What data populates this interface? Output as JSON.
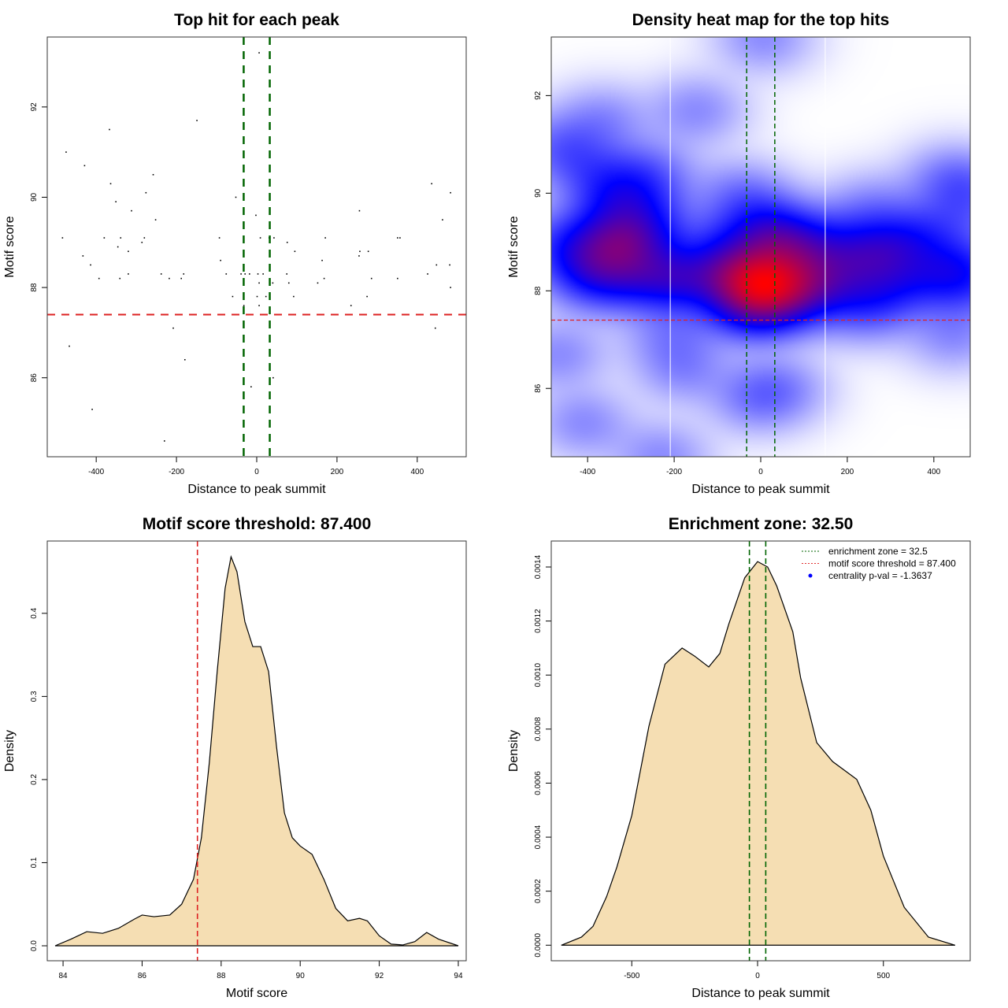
{
  "chart_data": [
    {
      "type": "scatter",
      "title": "Top hit for each peak",
      "xlabel": "Distance to peak summit",
      "ylabel": "Motif score",
      "xlim": [
        -522,
        522
      ],
      "ylim": [
        84.25,
        93.55
      ],
      "xticks": [
        -400,
        -200,
        0,
        200,
        400
      ],
      "yticks": [
        86,
        88,
        90,
        92
      ],
      "vlines": [
        -32.5,
        32.5
      ],
      "hline": 87.4,
      "points": [
        [
          6,
          93.2
        ],
        [
          -149,
          91.7
        ],
        [
          -367,
          91.5
        ],
        [
          -475,
          91.0
        ],
        [
          -429,
          90.7
        ],
        [
          -258,
          90.5
        ],
        [
          -364,
          90.3
        ],
        [
          436,
          90.3
        ],
        [
          -276,
          90.1
        ],
        [
          483,
          90.1
        ],
        [
          -52,
          90.0
        ],
        [
          -351,
          89.9
        ],
        [
          -2,
          89.6
        ],
        [
          -312,
          89.7
        ],
        [
          256,
          89.7
        ],
        [
          -252,
          89.5
        ],
        [
          463,
          89.5
        ],
        [
          -484,
          89.1
        ],
        [
          -380,
          89.1
        ],
        [
          -339,
          89.1
        ],
        [
          -280,
          89.1
        ],
        [
          -93,
          89.1
        ],
        [
          9,
          89.1
        ],
        [
          31,
          89.1
        ],
        [
          43,
          89.1
        ],
        [
          171,
          89.1
        ],
        [
          351,
          89.1
        ],
        [
          357,
          89.1
        ],
        [
          -286,
          89.0
        ],
        [
          76,
          89.0
        ],
        [
          -346,
          88.9
        ],
        [
          -320,
          88.8
        ],
        [
          95,
          88.8
        ],
        [
          257,
          88.8
        ],
        [
          278,
          88.8
        ],
        [
          -433,
          88.7
        ],
        [
          255,
          88.7
        ],
        [
          -90,
          88.6
        ],
        [
          163,
          88.6
        ],
        [
          -414,
          88.5
        ],
        [
          448,
          88.5
        ],
        [
          481,
          88.5
        ],
        [
          -320,
          88.3
        ],
        [
          -238,
          88.3
        ],
        [
          -182,
          88.3
        ],
        [
          -76,
          88.3
        ],
        [
          -39,
          88.3
        ],
        [
          -29,
          88.3
        ],
        [
          -18,
          88.3
        ],
        [
          3,
          88.3
        ],
        [
          16,
          88.3
        ],
        [
          75,
          88.3
        ],
        [
          426,
          88.3
        ],
        [
          -393,
          88.2
        ],
        [
          -341,
          88.2
        ],
        [
          -218,
          88.2
        ],
        [
          -188,
          88.2
        ],
        [
          168,
          88.2
        ],
        [
          286,
          88.2
        ],
        [
          351,
          88.2
        ],
        [
          6,
          88.1
        ],
        [
          40,
          88.1
        ],
        [
          80,
          88.1
        ],
        [
          152,
          88.1
        ],
        [
          483,
          88.0
        ],
        [
          -60,
          87.8
        ],
        [
          1,
          87.8
        ],
        [
          23,
          87.8
        ],
        [
          92,
          87.8
        ],
        [
          275,
          87.8
        ],
        [
          -32,
          87.6
        ],
        [
          6,
          87.6
        ],
        [
          235,
          87.6
        ],
        [
          -208,
          87.1
        ],
        [
          445,
          87.1
        ],
        [
          -467,
          86.7
        ],
        [
          -179,
          86.4
        ],
        [
          -14,
          85.8
        ],
        [
          41,
          86.0
        ],
        [
          -410,
          85.3
        ],
        [
          -230,
          84.6
        ]
      ]
    },
    {
      "type": "heatmap",
      "title": "Density heat map for the top hits",
      "xlabel": "Distance to peak summit",
      "ylabel": "Motif score",
      "xlim": [
        -484,
        484
      ],
      "ylim": [
        84.6,
        93.2
      ],
      "xticks": [
        -400,
        -200,
        0,
        200,
        400
      ],
      "yticks": [
        86,
        88,
        90,
        92
      ],
      "vlines": [
        -32.5,
        32.5
      ],
      "hline": 87.4,
      "white_lines": [
        -209,
        149
      ],
      "source": "points of panel 1"
    },
    {
      "type": "area",
      "title": "Motif score threshold: 87.400",
      "xlabel": "Motif score",
      "ylabel": "Density",
      "xlim": [
        83.6,
        94.2
      ],
      "ylim": [
        -0.018,
        0.487
      ],
      "xticks": [
        84,
        86,
        88,
        90,
        92,
        94
      ],
      "yticks": [
        0.0,
        0.1,
        0.2,
        0.3,
        0.4
      ],
      "ytick_labels": [
        "0.0",
        "0.1",
        "0.2",
        "0.3",
        "0.4"
      ],
      "vlines": [
        87.4
      ],
      "x": [
        83.8,
        84.2,
        84.6,
        85.0,
        85.4,
        85.8,
        86.0,
        86.3,
        86.7,
        87.0,
        87.3,
        87.5,
        87.7,
        87.9,
        88.1,
        88.25,
        88.4,
        88.6,
        88.8,
        89.0,
        89.2,
        89.4,
        89.6,
        89.8,
        90.0,
        90.3,
        90.6,
        90.9,
        91.2,
        91.5,
        91.7,
        92.0,
        92.3,
        92.6,
        92.9,
        93.2,
        93.5,
        94.0
      ],
      "y": [
        0,
        0.008,
        0.017,
        0.015,
        0.021,
        0.032,
        0.037,
        0.035,
        0.037,
        0.05,
        0.08,
        0.13,
        0.22,
        0.33,
        0.43,
        0.468,
        0.45,
        0.39,
        0.36,
        0.36,
        0.33,
        0.24,
        0.16,
        0.13,
        0.12,
        0.11,
        0.08,
        0.045,
        0.03,
        0.033,
        0.03,
        0.012,
        0.002,
        0.001,
        0.005,
        0.016,
        0.008,
        0
      ]
    },
    {
      "type": "area",
      "title": "Enrichment zone: 32.50",
      "xlabel": "Distance to peak summit",
      "ylabel": "Density",
      "xlim": [
        -820,
        845
      ],
      "ylim": [
        -5.75e-05,
        0.0014962
      ],
      "xticks": [
        -500,
        0,
        500
      ],
      "yticks": [
        0,
        0.0002,
        0.0004,
        0.0006,
        0.0008,
        0.001,
        0.0012,
        0.0014
      ],
      "ytick_labels": [
        "0.0000",
        "0.0002",
        "0.0004",
        "0.0006",
        "0.0008",
        "0.0010",
        "0.0012",
        "0.0014"
      ],
      "vlines": [
        -32.5,
        32.5
      ],
      "x": [
        -780,
        -700,
        -654,
        -600,
        -559,
        -500,
        -432,
        -368,
        -300,
        -250,
        -194,
        -150,
        -114,
        -51,
        0,
        40,
        76,
        140,
        171,
        235,
        298,
        394,
        450,
        500,
        583,
        679,
        785
      ],
      "y": [
        0,
        3e-05,
        7e-05,
        0.00018,
        0.00029,
        0.00048,
        0.00081,
        0.00104,
        0.0011,
        0.00107,
        0.00103,
        0.00108,
        0.00119,
        0.00136,
        0.00142,
        0.0014,
        0.00133,
        0.00116,
        0.00099,
        0.00075,
        0.00068,
        0.000614,
        0.0005,
        0.00033,
        0.00014,
        3e-05,
        0
      ],
      "legend": {
        "position": "top-right",
        "entries": [
          {
            "label": "enrichment zone = 32.5",
            "color": "#006400",
            "style": "dotted-line"
          },
          {
            "label": "motif score threshold = 87.400",
            "color": "#e03030",
            "style": "dotted-line"
          },
          {
            "label": "centrality p-val = -1.3637",
            "color": "#0000ff",
            "style": "dot"
          }
        ]
      }
    }
  ],
  "colors": {
    "threshold": "#dd2222",
    "zone": "#006400",
    "fill": "#f5deb3"
  }
}
